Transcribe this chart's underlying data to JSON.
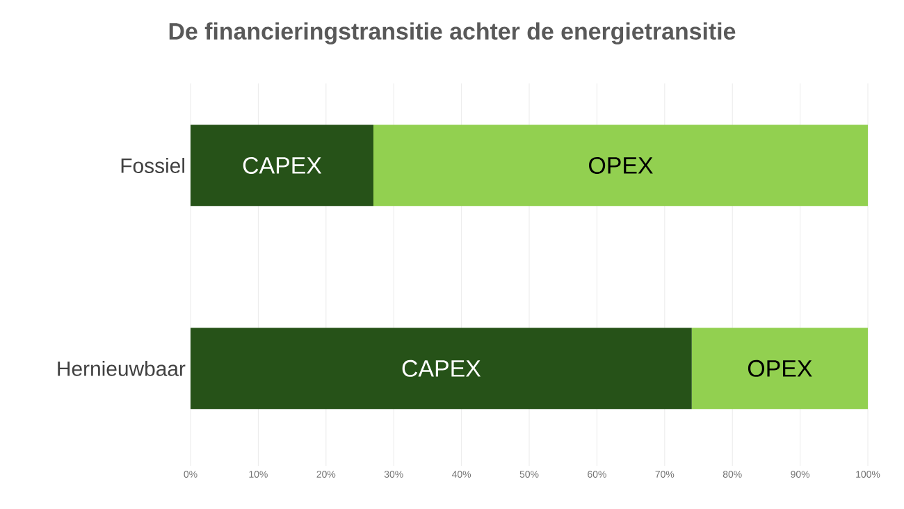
{
  "chart_data": {
    "type": "bar",
    "title": "De financieringstransitie achter de energietransitie",
    "orientation": "horizontal",
    "stacked": true,
    "categories": [
      "Fossiel",
      "Hernieuwbaar"
    ],
    "series": [
      {
        "name": "CAPEX",
        "color": "#265218",
        "values": [
          27,
          74
        ]
      },
      {
        "name": "OPEX",
        "color": "#92d050",
        "values": [
          73,
          26
        ]
      }
    ],
    "xlim": [
      0,
      100
    ],
    "xticks": [
      {
        "value": 0,
        "label": "0%"
      },
      {
        "value": 10,
        "label": "10%"
      },
      {
        "value": 20,
        "label": "20%"
      },
      {
        "value": 30,
        "label": "30%"
      },
      {
        "value": 40,
        "label": "40%"
      },
      {
        "value": 50,
        "label": "50%"
      },
      {
        "value": 60,
        "label": "60%"
      },
      {
        "value": 70,
        "label": "70%"
      },
      {
        "value": 80,
        "label": "80%"
      },
      {
        "value": 90,
        "label": "90%"
      },
      {
        "value": 100,
        "label": "100%"
      }
    ],
    "grid": "x"
  }
}
